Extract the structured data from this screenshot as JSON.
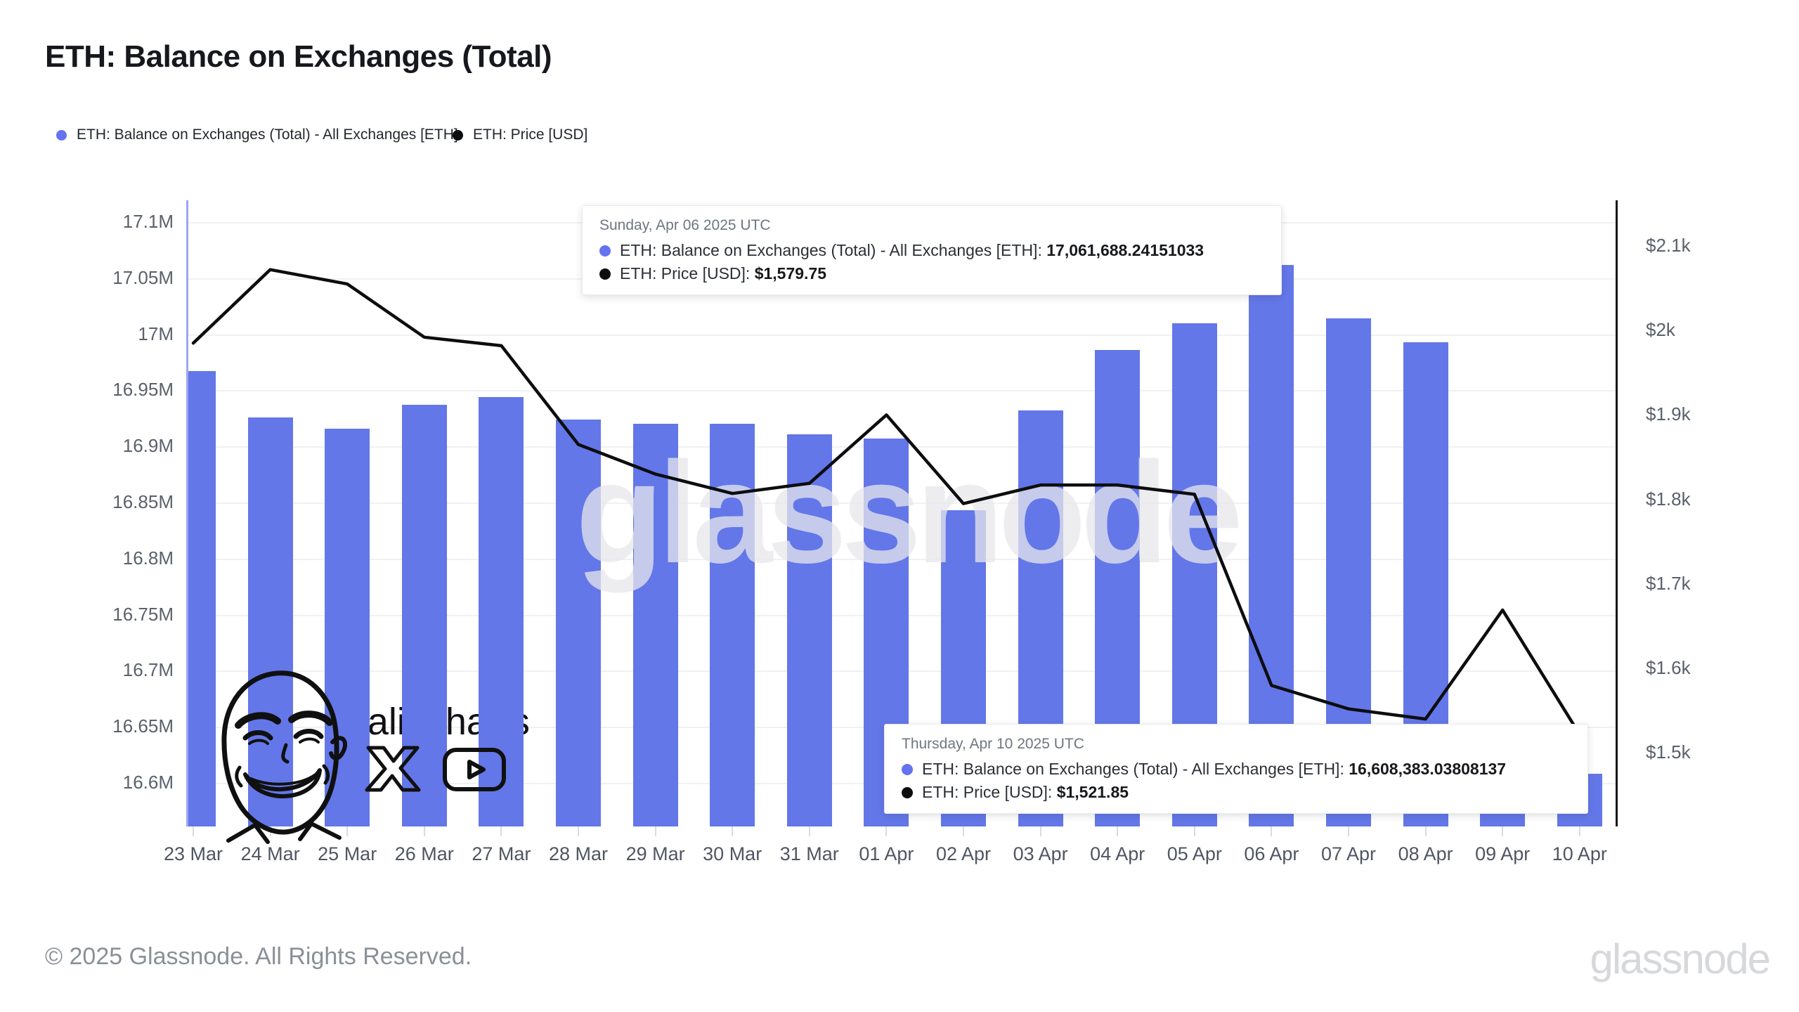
{
  "title": "ETH: Balance on Exchanges (Total)",
  "colors": {
    "balance": "#6377e8",
    "price": "#0c0d0f",
    "legend_balance_dot": "#6473f0",
    "legend_price_dot": "#0c0d0f"
  },
  "legend": {
    "balance_label": "ETH: Balance on Exchanges (Total) - All Exchanges [ETH]",
    "price_label": "ETH: Price [USD]"
  },
  "chart_data": {
    "type": "bar",
    "categories": [
      "23 Mar",
      "24 Mar",
      "25 Mar",
      "26 Mar",
      "27 Mar",
      "28 Mar",
      "29 Mar",
      "30 Mar",
      "31 Mar",
      "01 Apr",
      "02 Apr",
      "03 Apr",
      "04 Apr",
      "05 Apr",
      "06 Apr",
      "07 Apr",
      "08 Apr",
      "09 Apr",
      "10 Apr"
    ],
    "series": [
      {
        "name": "ETH: Balance on Exchanges (Total) - All Exchanges [ETH]",
        "type": "bar",
        "axis": "left",
        "unit": "M ETH",
        "values": [
          16.967,
          16.926,
          16.916,
          16.937,
          16.944,
          16.924,
          16.92,
          16.92,
          16.911,
          16.907,
          16.843,
          16.932,
          16.986,
          17.01,
          17.061688,
          17.014,
          16.993,
          16.64,
          16.608383
        ]
      },
      {
        "name": "ETH: Price [USD]",
        "type": "line",
        "axis": "right",
        "unit": "USD",
        "values": [
          1985,
          2072,
          2055,
          1992,
          1982,
          1865,
          1830,
          1807,
          1819,
          1900,
          1795,
          1817,
          1817,
          1806,
          1579.75,
          1552,
          1540,
          1669,
          1521.85
        ]
      }
    ],
    "left_axis": {
      "ticks": [
        "17.1M",
        "17.05M",
        "17M",
        "16.95M",
        "16.9M",
        "16.85M",
        "16.8M",
        "16.75M",
        "16.7M",
        "16.65M",
        "16.6M"
      ],
      "tick_values": [
        17.1,
        17.05,
        17.0,
        16.95,
        16.9,
        16.85,
        16.8,
        16.75,
        16.7,
        16.65,
        16.6
      ],
      "range": [
        16.561,
        17.119
      ]
    },
    "right_axis": {
      "ticks": [
        "$2.1k",
        "$2k",
        "$1.9k",
        "$1.8k",
        "$1.7k",
        "$1.6k",
        "$1.5k"
      ],
      "tick_values": [
        2100,
        2000,
        1900,
        1800,
        1700,
        1600,
        1500
      ],
      "range": [
        1409,
        2154
      ]
    },
    "grid": "horizontal",
    "legend_position": "top-left"
  },
  "tooltips": [
    {
      "date": "Sunday, Apr 06 2025 UTC",
      "rows": [
        {
          "label": "ETH: Balance on Exchanges (Total) - All Exchanges [ETH]:",
          "value": "17,061,688.24151033"
        },
        {
          "label": "ETH: Price [USD]:",
          "value": "$1,579.75"
        }
      ]
    },
    {
      "date": "Thursday, Apr 10 2025 UTC",
      "rows": [
        {
          "label": "ETH: Balance on Exchanges (Total) - All Exchanges [ETH]:",
          "value": "16,608,383.03808137"
        },
        {
          "label": "ETH: Price [USD]:",
          "value": "$1,521.85"
        }
      ]
    }
  ],
  "signature": {
    "handle": "@ali_charts"
  },
  "watermark": "glassnode",
  "footer": {
    "copyright": "© 2025 Glassnode. All Rights Reserved.",
    "wordmark": "glassnode"
  }
}
